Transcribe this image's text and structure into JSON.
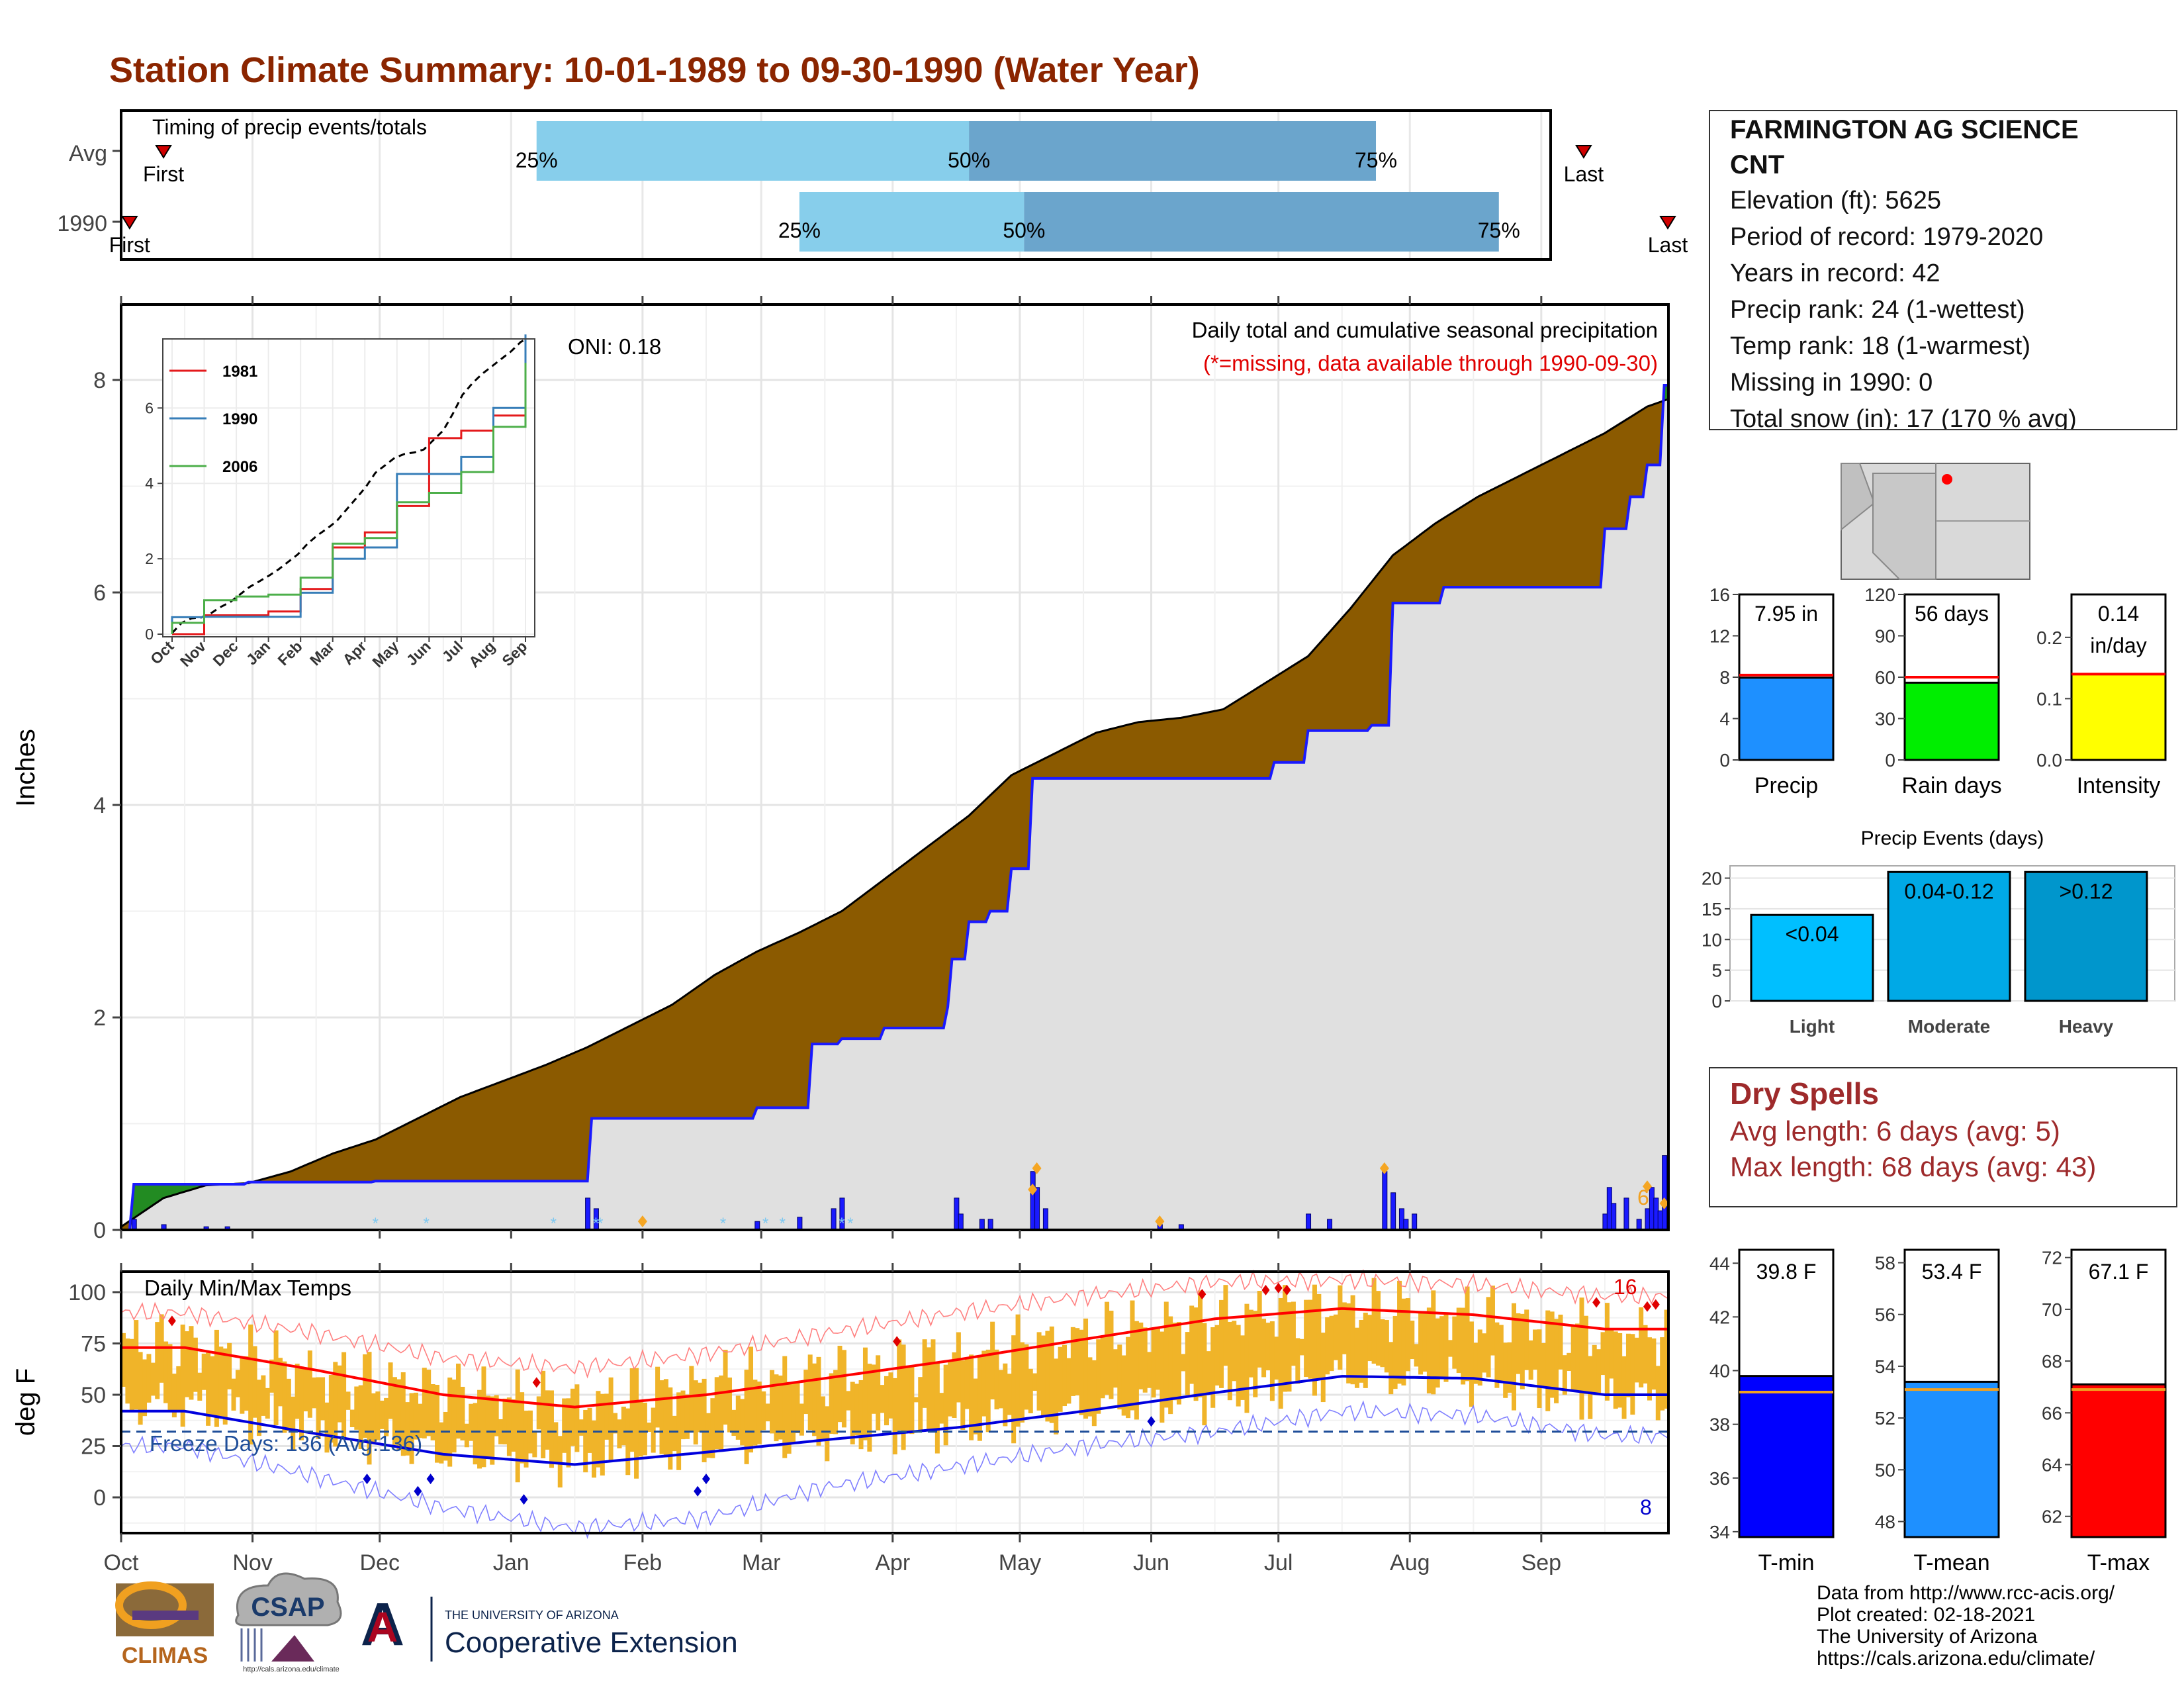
{
  "title": "Station Climate Summary: 10-01-1989 to 09-30-1990 (Water Year)",
  "station": {
    "name": "FARMINGTON AG SCIENCE CNT",
    "lines": [
      "Elevation (ft): 5625",
      "Period of record: 1979-2020",
      "Years in record: 42",
      "Precip rank: 24 (1-wettest)",
      "Temp rank: 18 (1-warmest)",
      "Missing in 1990: 0",
      "Total snow (in): 17 (170 % avg)"
    ]
  },
  "timing": {
    "title": "Timing of precip events/totals",
    "rows": [
      "Avg",
      "1990"
    ],
    "first_label": "First",
    "last_label": "Last",
    "pct_labels": [
      "25%",
      "50%",
      "75%"
    ],
    "avg": {
      "first": 10,
      "q25": 98,
      "q50": 200,
      "q75": 296,
      "last": 345
    },
    "y1990": {
      "first": 2,
      "q25": 160,
      "q50": 213,
      "q75": 325,
      "last": 365
    },
    "colors": {
      "light": "#87ceeb",
      "dark": "#6ba5cc"
    }
  },
  "precip_main": {
    "title": "Daily total and cumulative seasonal precipitation",
    "missing_note": "(*=missing, data available through 1990-09-30)",
    "oni": "ONI: 0.18",
    "ylabel": "Inches",
    "yticks": [
      "0",
      "2",
      "4",
      "6",
      "8"
    ],
    "colors": {
      "normal_fill": "#8b5a00",
      "deficit_fill": "#8b5a00",
      "surplus_fill": "#228b22",
      "actual_line": "#1a1aff",
      "bars": "#1a1aff",
      "base": "#e0e0e0"
    }
  },
  "inset": {
    "yticks": [
      "0",
      "2",
      "4",
      "6"
    ],
    "xticks": [
      "Oct",
      "Nov",
      "Dec",
      "Jan",
      "Feb",
      "Mar",
      "Apr",
      "May",
      "Jun",
      "Jul",
      "Aug",
      "Sep"
    ],
    "legend": [
      {
        "name": "1981",
        "color": "#e41a1c"
      },
      {
        "name": "1990",
        "color": "#377eb8"
      },
      {
        "name": "2006",
        "color": "#4daf4a"
      }
    ]
  },
  "temp": {
    "title": "Daily Min/Max Temps",
    "ylabel": "deg F",
    "yticks": [
      "0",
      "25",
      "50",
      "75",
      "100"
    ],
    "freeze": "Freeze Days: 136 (Avg:136)",
    "count_hi": "16",
    "count_lo": "8",
    "colors": {
      "bars": "#f0b429",
      "avg_max": "#ff0000",
      "avg_min": "#0000dd",
      "rec_max": "#ff8080",
      "rec_min": "#8080ff",
      "freeze": "#1f4e99"
    }
  },
  "months": [
    "Oct",
    "Nov",
    "Dec",
    "Jan",
    "Feb",
    "Mar",
    "Apr",
    "May",
    "Jun",
    "Jul",
    "Aug",
    "Sep"
  ],
  "summary_bars": [
    {
      "name": "Precip",
      "label": "7.95 in",
      "ticks": [
        "0",
        "4",
        "8",
        "12",
        "16"
      ],
      "color": "#1e90ff"
    },
    {
      "name": "Rain days",
      "label": "56 days",
      "ticks": [
        "0",
        "30",
        "60",
        "90",
        "120"
      ],
      "color": "#00ee00"
    },
    {
      "name": "Intensity",
      "label": "0.14 in/day",
      "label_lines": [
        "0.14",
        "in/day"
      ],
      "ticks": [
        "0.0",
        "0.1",
        "0.2"
      ],
      "color": "#ffff00"
    }
  ],
  "events": {
    "title": "Precip Events (days)",
    "ticks": [
      "0",
      "5",
      "10",
      "15",
      "20"
    ],
    "bars": [
      {
        "cat": "Light",
        "label": "<0.04",
        "color": "#00bfff"
      },
      {
        "cat": "Moderate",
        "label": "0.04-0.12",
        "color": "#00a9e6"
      },
      {
        "cat": "Heavy",
        "label": ">0.12",
        "color": "#0096cc"
      }
    ]
  },
  "dry_spells": {
    "title": "Dry Spells",
    "lines": [
      "Avg length: 6 days (avg: 5)",
      "Max length: 68 days (avg: 43)"
    ]
  },
  "temp_bars": [
    {
      "name": "T-min",
      "label": "39.8 F",
      "ticks": [
        "34",
        "36",
        "38",
        "40",
        "42",
        "44"
      ],
      "color": "#0000ff"
    },
    {
      "name": "T-mean",
      "label": "53.4 F",
      "ticks": [
        "48",
        "50",
        "52",
        "54",
        "56",
        "58"
      ],
      "color": "#1e90ff"
    },
    {
      "name": "T-max",
      "label": "67.1 F",
      "ticks": [
        "62",
        "64",
        "66",
        "68",
        "70",
        "72"
      ],
      "color": "#ff0000"
    }
  ],
  "footer": {
    "lines": [
      "Data from http://www.rcc-acis.org/",
      "Plot created: 02-18-2021",
      "The University of Arizona",
      "https://cals.arizona.edu/climate/"
    ]
  },
  "logos": {
    "climas": "CLIMAS",
    "csap": "CSAP",
    "csap_url": "http://cals.arizona.edu/climate",
    "ua_small": "THE UNIVERSITY OF ARIZONA",
    "ua_big": "Cooperative Extension"
  },
  "chart_data": [
    {
      "type": "bar",
      "title": "Timing of precip events/totals",
      "categories": [
        "Avg",
        "1990"
      ],
      "series": [
        {
          "name": "First",
          "values": [
            10,
            2
          ]
        },
        {
          "name": "25%",
          "values": [
            98,
            160
          ]
        },
        {
          "name": "50%",
          "values": [
            200,
            213
          ]
        },
        {
          "name": "75%",
          "values": [
            296,
            325
          ]
        },
        {
          "name": "Last",
          "values": [
            345,
            365
          ]
        }
      ],
      "x_units": "day of water year (Oct 1 = 0)"
    },
    {
      "type": "area",
      "title": "Daily total and cumulative seasonal precipitation",
      "ylabel": "Inches",
      "ylim": [
        0,
        8.7
      ],
      "x_units": "day of water year (Oct 1 = 0)",
      "series": [
        {
          "name": "Average cumulative precipitation",
          "x": [
            0,
            10,
            20,
            30,
            40,
            50,
            60,
            70,
            80,
            90,
            100,
            110,
            120,
            130,
            140,
            150,
            160,
            170,
            180,
            190,
            200,
            210,
            220,
            230,
            240,
            250,
            260,
            270,
            280,
            290,
            300,
            310,
            320,
            330,
            340,
            350,
            360,
            365
          ],
          "y": [
            0.03,
            0.3,
            0.42,
            0.44,
            0.55,
            0.72,
            0.85,
            1.05,
            1.25,
            1.4,
            1.55,
            1.72,
            1.92,
            2.12,
            2.4,
            2.62,
            2.8,
            3.0,
            3.3,
            3.6,
            3.9,
            4.28,
            4.48,
            4.68,
            4.78,
            4.82,
            4.9,
            5.15,
            5.4,
            5.85,
            6.35,
            6.65,
            6.9,
            7.1,
            7.3,
            7.5,
            7.75,
            7.82
          ]
        },
        {
          "name": "1990 cumulative precipitation",
          "x": [
            0,
            3,
            30,
            60,
            85,
            110,
            111,
            150,
            163,
            170,
            180,
            195,
            196,
            200,
            205,
            210,
            215,
            235,
            245,
            250,
            272,
            280,
            295,
            300,
            312,
            340,
            350,
            356,
            360,
            364,
            365
          ],
          "y": [
            0.0,
            0.43,
            0.45,
            0.46,
            0.46,
            0.46,
            1.05,
            1.15,
            1.75,
            1.8,
            1.9,
            2.1,
            2.55,
            2.9,
            3.0,
            3.4,
            4.25,
            4.25,
            4.25,
            4.25,
            4.4,
            4.7,
            4.75,
            5.9,
            6.05,
            6.05,
            6.6,
            6.9,
            7.2,
            7.95,
            7.95
          ]
        },
        {
          "name": "Daily precipitation 1990",
          "x": [
            3,
            10,
            20,
            25,
            110,
            112,
            150,
            160,
            168,
            170,
            197,
            198,
            203,
            205,
            215,
            216,
            218,
            245,
            250,
            280,
            285,
            298,
            300,
            302,
            303,
            305,
            350,
            351,
            352,
            355,
            358,
            360,
            361,
            362,
            363,
            364
          ],
          "y": [
            0.1,
            0.05,
            0.03,
            0.03,
            0.3,
            0.2,
            0.08,
            0.12,
            0.2,
            0.3,
            0.3,
            0.15,
            0.1,
            0.1,
            0.55,
            0.4,
            0.2,
            0.05,
            0.05,
            0.15,
            0.1,
            0.55,
            0.35,
            0.2,
            0.1,
            0.15,
            0.15,
            0.4,
            0.25,
            0.3,
            0.1,
            0.2,
            0.4,
            0.3,
            0.18,
            0.7
          ]
        }
      ]
    },
    {
      "type": "line",
      "title": "",
      "x": [
        "Oct",
        "Nov",
        "Dec",
        "Jan",
        "Feb",
        "Mar",
        "Apr",
        "May",
        "Jun",
        "Jul",
        "Aug",
        "Sep"
      ],
      "ylim": [
        0,
        7
      ],
      "series": [
        {
          "name": "1981",
          "values": [
            0.0,
            0.5,
            0.5,
            0.6,
            1.2,
            2.3,
            2.7,
            3.4,
            5.2,
            5.4,
            5.8,
            6.5
          ]
        },
        {
          "name": "1990",
          "values": [
            0.45,
            0.46,
            0.46,
            0.46,
            1.1,
            2.0,
            2.3,
            4.25,
            4.25,
            4.7,
            6.0,
            7.95
          ]
        },
        {
          "name": "2006",
          "values": [
            0.3,
            0.9,
            1.0,
            1.05,
            1.5,
            2.4,
            2.55,
            3.5,
            3.75,
            4.3,
            5.5,
            7.2
          ]
        }
      ]
    },
    {
      "type": "bar",
      "title": "Daily Min/Max Temps",
      "ylabel": "deg F",
      "ylim": [
        -20,
        108
      ],
      "categories": [
        "Oct",
        "Nov",
        "Dec",
        "Jan",
        "Feb",
        "Mar",
        "Apr",
        "May",
        "Jun",
        "Jul",
        "Aug",
        "Sep"
      ],
      "series": [
        {
          "name": "Average max",
          "values": [
            73,
            62,
            50,
            44,
            50,
            58,
            67,
            77,
            87,
            92,
            89,
            82
          ]
        },
        {
          "name": "Average min",
          "values": [
            42,
            31,
            21,
            16,
            22,
            28,
            34,
            42,
            51,
            59,
            58,
            50
          ]
        },
        {
          "name": "Record max",
          "values": [
            90,
            80,
            68,
            63,
            70,
            80,
            90,
            98,
            105,
            106,
            104,
            98
          ]
        },
        {
          "name": "Record min",
          "values": [
            25,
            10,
            -5,
            -15,
            -10,
            5,
            15,
            25,
            32,
            42,
            40,
            30
          ]
        },
        {
          "name": "Daily max 1990",
          "values": [
            75,
            60,
            52,
            45,
            55,
            60,
            68,
            78,
            88,
            93,
            88,
            80
          ]
        },
        {
          "name": "Daily min 1990",
          "values": [
            45,
            33,
            22,
            18,
            25,
            30,
            35,
            43,
            50,
            60,
            57,
            48
          ]
        }
      ],
      "annotations": {
        "freeze_line": 32
      }
    },
    {
      "type": "bar",
      "categories": [
        "Precip",
        "Rain days",
        "Intensity"
      ],
      "series": [
        {
          "name": "1990",
          "values": [
            7.95,
            56,
            0.14
          ]
        },
        {
          "name": "Average",
          "values": [
            8.2,
            60,
            0.14
          ]
        }
      ],
      "ylim": [
        [
          0,
          16
        ],
        [
          0,
          120
        ],
        [
          0,
          0.27
        ]
      ]
    },
    {
      "type": "bar",
      "title": "Precip Events (days)",
      "categories": [
        "Light",
        "Moderate",
        "Heavy"
      ],
      "values": [
        14,
        21,
        21
      ],
      "ylim": [
        0,
        22
      ]
    },
    {
      "type": "bar",
      "categories": [
        "T-min",
        "T-mean",
        "T-max"
      ],
      "series": [
        {
          "name": "1990",
          "values": [
            39.8,
            53.4,
            67.1
          ]
        },
        {
          "name": "Average",
          "values": [
            39.2,
            53.1,
            66.9
          ]
        }
      ],
      "ylim": [
        [
          33.8,
          44.5
        ],
        [
          47.4,
          58.5
        ],
        [
          61.2,
          72.3
        ]
      ]
    }
  ]
}
